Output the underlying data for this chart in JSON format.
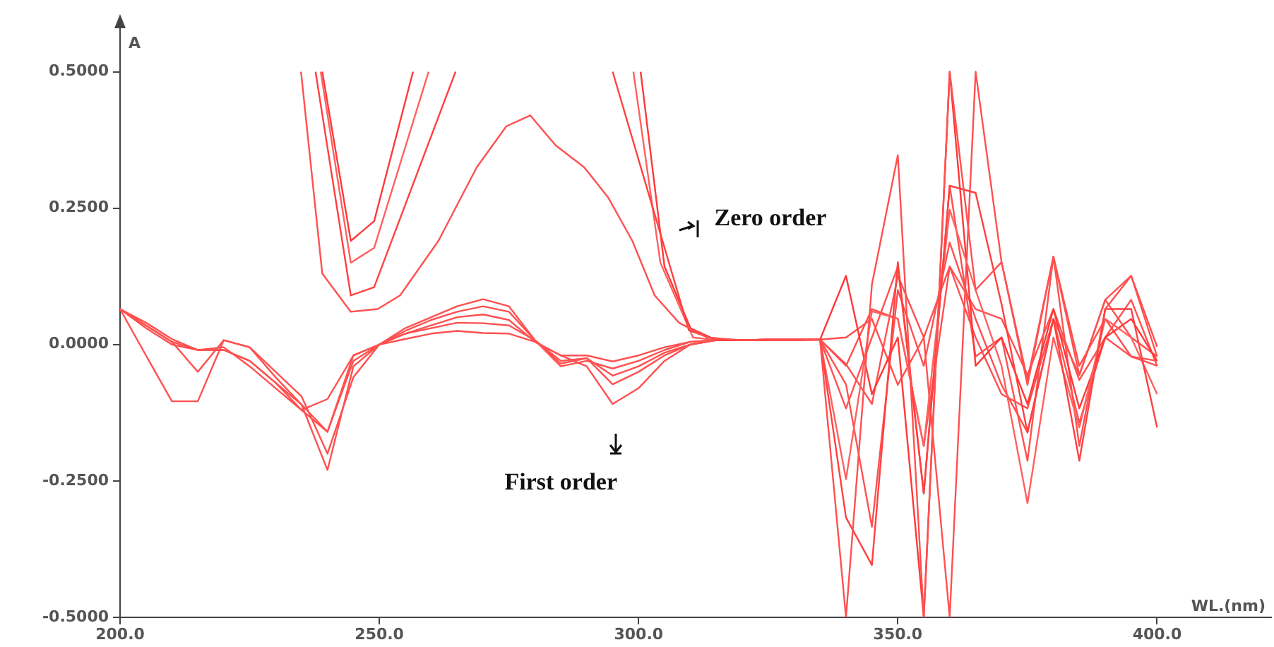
{
  "chart_data": {
    "type": "line",
    "xlabel": "WL.(nm)",
    "ylabel": "A",
    "xlim": [
      200,
      422
    ],
    "ylim": [
      -0.5,
      0.59
    ],
    "xticks": [
      {
        "value": 200,
        "label": "200.0"
      },
      {
        "value": 250,
        "label": "250.0"
      },
      {
        "value": 300,
        "label": "300.0"
      },
      {
        "value": 350,
        "label": "350.0"
      },
      {
        "value": 400,
        "label": "400.0"
      }
    ],
    "yticks": [
      {
        "value": -0.5,
        "label": "-0.5000"
      },
      {
        "value": -0.25,
        "label": "-0.2500"
      },
      {
        "value": 0,
        "label": "0.0000"
      },
      {
        "value": 0.25,
        "label": "0.2500"
      },
      {
        "value": 0.5,
        "label": "0.5000"
      }
    ],
    "grid": false,
    "legend": false,
    "marker": "none",
    "line_style": "solid",
    "annotations": [
      "Zero order",
      "First order"
    ],
    "series": [
      {
        "color": "#ff5050",
        "x": [
          234.9,
          239,
          244.5,
          249.7,
          254,
          261.4,
          268.8,
          274.5,
          279.1,
          284,
          289.5,
          294.1,
          298.8,
          303.1,
          307.8,
          313.2,
          320,
          325,
          330,
          335,
          340,
          345,
          350,
          355,
          360,
          365,
          370,
          375,
          380,
          385,
          390,
          395,
          400
        ],
        "values": [
          0.5,
          0.13,
          0.06,
          0.065,
          0.09,
          0.19,
          0.325,
          0.4,
          0.42,
          0.365,
          0.325,
          0.27,
          0.19,
          0.09,
          0.04,
          0.013,
          0.008,
          0.008,
          0.008,
          0.009,
          -0.5,
          0.11,
          0.347,
          -0.5,
          0.5,
          0.1,
          0.151,
          -0.074,
          0.161,
          -0.056,
          0.082,
          0.126,
          -0.004
        ]
      },
      {
        "color": "#ff4040",
        "x": [
          237.7,
          244.5,
          249,
          264.7,
          280,
          295,
          309.7,
          315,
          320,
          325,
          330,
          335,
          340,
          345,
          350,
          355,
          360,
          365,
          370,
          375,
          380,
          385,
          390,
          395,
          400
        ],
        "values": [
          0.5,
          0.09,
          0.105,
          0.5,
          null,
          0.5,
          0.026,
          0.008,
          0.008,
          0.008,
          0.008,
          0.009,
          -0.317,
          -0.404,
          0.151,
          -0.273,
          0.291,
          0.278,
          0.074,
          -0.161,
          0.047,
          -0.213,
          0.065,
          0.065,
          -0.152
        ]
      },
      {
        "color": "#ff6060",
        "x": [
          238.7,
          244.5,
          249,
          259.5,
          280,
          299,
          304.2,
          310.5,
          315,
          320,
          325,
          330,
          335,
          340,
          345,
          350,
          355,
          360,
          365,
          370,
          375,
          380,
          385,
          390,
          395,
          400
        ],
        "values": [
          0.5,
          0.15,
          0.177,
          0.5,
          null,
          0.5,
          0.15,
          0.013,
          0.008,
          0.008,
          0.008,
          0.008,
          0.009,
          -0.247,
          0.061,
          0.047,
          -0.186,
          0.247,
          0.1,
          -0.039,
          -0.291,
          0.013,
          -0.152,
          0.047,
          0.013,
          -0.091
        ]
      },
      {
        "color": "#ff3838",
        "x": [
          239,
          244.5,
          249,
          256.5,
          280,
          300.4,
          305,
          310,
          315,
          320,
          325,
          330,
          335,
          340,
          345,
          350,
          355,
          360,
          365,
          370,
          375,
          380,
          385,
          390,
          395,
          400
        ],
        "values": [
          0.5,
          0.19,
          0.226,
          0.5,
          null,
          0.5,
          0.143,
          0.03,
          0.008,
          0.008,
          0.008,
          0.008,
          0.009,
          0.126,
          -0.091,
          0.013,
          -0.5,
          0.5,
          -0.039,
          0.013,
          -0.109,
          0.065,
          -0.117,
          0.013,
          0.047,
          -0.03
        ]
      },
      {
        "color": "#ff5050",
        "x": [
          200,
          205,
          210,
          215,
          220,
          225,
          230,
          235,
          240,
          245,
          250,
          255,
          260,
          265,
          270,
          275,
          280,
          285,
          290,
          295,
          300,
          305,
          310,
          315,
          320,
          325,
          330,
          335,
          340,
          345,
          350,
          355,
          360,
          365,
          370,
          375,
          380,
          385,
          390,
          395,
          400
        ],
        "values": [
          0.065,
          0.04,
          0.01,
          -0.01,
          -0.01,
          -0.03,
          -0.07,
          -0.11,
          -0.23,
          -0.04,
          0.0,
          0.02,
          0.035,
          0.05,
          0.055,
          0.045,
          0.005,
          -0.02,
          -0.02,
          -0.031,
          -0.02,
          -0.005,
          0.005,
          0.008,
          0.008,
          0.009,
          0.009,
          0.009,
          -0.073,
          -0.334,
          0.1,
          -0.039,
          0.187,
          0.047,
          -0.074,
          -0.161,
          0.047,
          -0.056,
          0.082,
          0.013,
          -0.022
        ]
      },
      {
        "color": "#ff5050",
        "x": [
          200,
          205,
          210,
          215,
          220,
          225,
          230,
          235,
          240,
          245,
          250,
          255,
          260,
          265,
          270,
          275,
          280,
          285,
          290,
          295,
          300,
          305,
          310,
          315,
          320,
          325,
          330,
          335,
          340,
          345,
          350,
          355,
          360,
          365,
          370,
          375,
          380,
          385,
          390,
          395,
          400
        ],
        "values": [
          0.065,
          0.035,
          0.005,
          -0.05,
          0.008,
          -0.005,
          -0.06,
          -0.11,
          -0.16,
          -0.03,
          0.0,
          0.025,
          0.045,
          0.06,
          0.07,
          0.06,
          0.008,
          -0.04,
          -0.03,
          -0.044,
          -0.03,
          -0.01,
          0.005,
          0.008,
          0.008,
          0.009,
          0.009,
          0.009,
          0.013,
          0.047,
          -0.074,
          0.013,
          -0.5,
          0.5,
          0.151,
          -0.065,
          0.161,
          -0.039,
          0.047,
          -0.022,
          -0.03
        ]
      },
      {
        "color": "#ff5050",
        "x": [
          200,
          205,
          210,
          215,
          220,
          225,
          230,
          235,
          240,
          245,
          250,
          255,
          260,
          265,
          270,
          275,
          280,
          285,
          290,
          295,
          300,
          305,
          310,
          315,
          320,
          325,
          330,
          335,
          340,
          345,
          350,
          355,
          360,
          365,
          370,
          375,
          380,
          385,
          390,
          395,
          400
        ],
        "values": [
          0.065,
          0.035,
          0.005,
          -0.01,
          -0.005,
          -0.04,
          -0.08,
          -0.12,
          -0.16,
          -0.02,
          0.0,
          0.03,
          0.05,
          0.07,
          0.083,
          0.07,
          0.008,
          -0.035,
          -0.025,
          -0.057,
          -0.04,
          -0.015,
          0.0,
          0.008,
          0.008,
          0.009,
          0.009,
          0.009,
          -0.039,
          0.065,
          0.047,
          -0.186,
          0.143,
          0.013,
          -0.091,
          -0.117,
          0.047,
          -0.143,
          0.013,
          0.082,
          -0.039
        ]
      },
      {
        "color": "#ff5050",
        "x": [
          200,
          205,
          210,
          215,
          220,
          225,
          230,
          235,
          240,
          245,
          250,
          255,
          260,
          265,
          270,
          275,
          280,
          285,
          290,
          295,
          300,
          305,
          310,
          315,
          320,
          325,
          330,
          335,
          340,
          345,
          350,
          355,
          360,
          365,
          370,
          375,
          380,
          385,
          390,
          395,
          400
        ],
        "values": [
          0.065,
          -0.02,
          -0.104,
          -0.104,
          0.008,
          -0.005,
          -0.05,
          -0.095,
          -0.2,
          -0.06,
          0.0,
          0.02,
          0.03,
          0.04,
          0.039,
          0.035,
          0.008,
          -0.03,
          -0.025,
          -0.073,
          -0.05,
          -0.02,
          0.0,
          0.008,
          0.008,
          0.009,
          0.009,
          0.009,
          -0.117,
          0.013,
          0.143,
          -0.273,
          0.291,
          -0.022,
          0.013,
          -0.213,
          0.161,
          -0.186,
          0.065,
          0.126,
          -0.022
        ]
      },
      {
        "color": "#ff5050",
        "x": [
          200,
          205,
          210,
          215,
          220,
          225,
          230,
          235,
          240,
          245,
          250,
          255,
          260,
          265,
          270,
          275,
          280,
          285,
          290,
          295,
          300,
          305,
          310,
          315,
          320,
          325,
          330,
          335,
          340,
          345,
          350,
          355,
          360,
          365,
          370,
          375,
          380,
          385,
          390,
          395,
          400
        ],
        "values": [
          0.065,
          0.03,
          0.0,
          -0.01,
          -0.01,
          -0.03,
          -0.07,
          -0.12,
          -0.1,
          -0.02,
          0.0,
          0.01,
          0.02,
          0.025,
          0.021,
          0.02,
          0.005,
          -0.02,
          -0.04,
          -0.109,
          -0.08,
          -0.03,
          0.0,
          0.008,
          0.008,
          0.009,
          0.009,
          0.009,
          -0.036,
          -0.109,
          0.126,
          0.013,
          0.143,
          0.065,
          0.047,
          -0.056,
          0.065,
          -0.065,
          0.013,
          -0.022,
          -0.039
        ]
      }
    ]
  }
}
